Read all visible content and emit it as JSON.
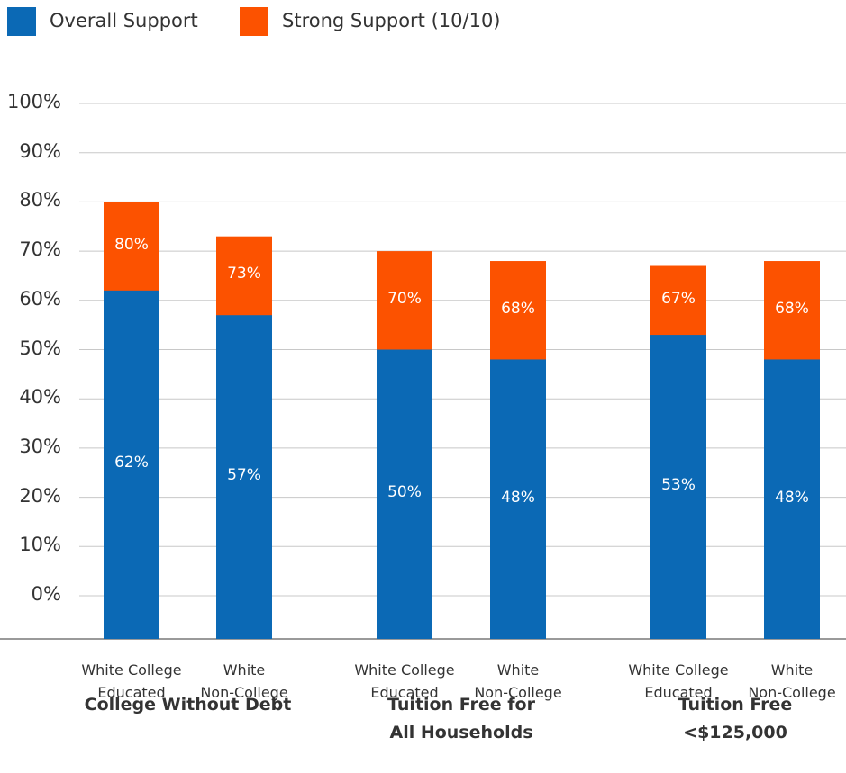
{
  "chart_data": {
    "type": "bar",
    "barmode": "overlay",
    "categories": [
      "White College\nEducated",
      "White\nNon-College",
      "White College\nEducated",
      "White\nNon-College",
      "White College\nEducated",
      "White\nNon-College"
    ],
    "groups": [
      "College Without Debt",
      "Tuition Free for\nAll Households",
      "Tuition Free\n<$125,000"
    ],
    "series": [
      {
        "name": "Overall Support",
        "color": "#0b69b5",
        "values": [
          62,
          57,
          50,
          48,
          53,
          48
        ],
        "value_labels": [
          "62%",
          "57%",
          "50%",
          "48%",
          "53%",
          "48%"
        ]
      },
      {
        "name": "Strong Support (10/10)",
        "color": "#fc5200",
        "values": [
          80,
          73,
          70,
          68,
          67,
          68
        ],
        "value_labels": [
          "80%",
          "73%",
          "70%",
          "68%",
          "67%",
          "68%"
        ]
      }
    ],
    "ylim": [
      0,
      100
    ],
    "yticks": [
      {
        "value": 0,
        "label": "0%"
      },
      {
        "value": 10,
        "label": "10%"
      },
      {
        "value": 20,
        "label": "20%"
      },
      {
        "value": 30,
        "label": "30%"
      },
      {
        "value": 40,
        "label": "40%"
      },
      {
        "value": 50,
        "label": "50%"
      },
      {
        "value": 60,
        "label": "60%"
      },
      {
        "value": 70,
        "label": "70%"
      },
      {
        "value": 80,
        "label": "80%"
      },
      {
        "value": 90,
        "label": "90%"
      },
      {
        "value": 100,
        "label": "100%"
      }
    ],
    "grid": true,
    "legend": "top-left"
  }
}
